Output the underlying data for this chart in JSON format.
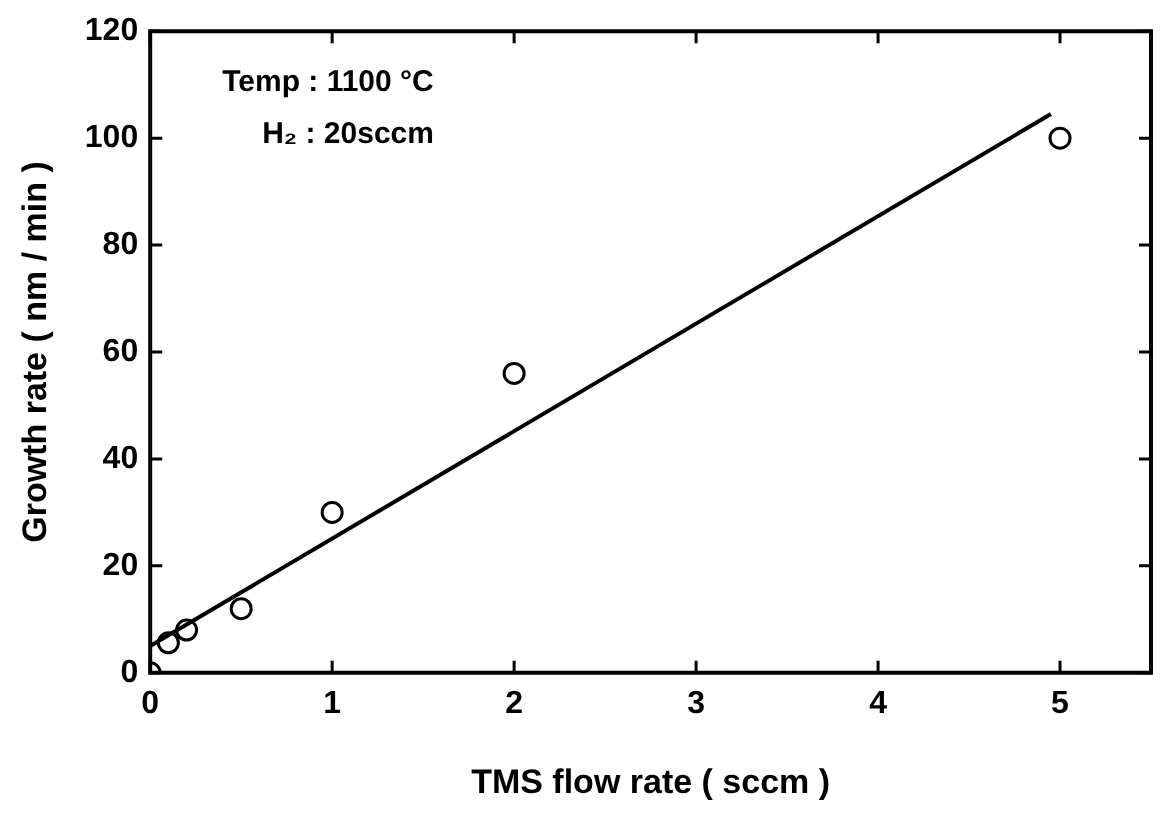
{
  "chart_data": {
    "type": "scatter",
    "xlabel": "TMS flow rate ( sccm )",
    "ylabel": "Growth rate ( nm / min )",
    "xlim": [
      0,
      5.5
    ],
    "xticks": [
      0,
      1,
      2,
      3,
      4,
      5
    ],
    "ylim": [
      0,
      120
    ],
    "yticks": [
      0,
      20,
      40,
      60,
      80,
      100,
      120
    ],
    "grid": false,
    "legend": false,
    "marker": "circle",
    "series": [
      {
        "color": "#000000",
        "x": [
          0,
          0.1,
          0.2,
          0.5,
          1,
          2,
          5
        ],
        "values": [
          0,
          5.6,
          8,
          12,
          30,
          56,
          100
        ]
      },
      {
        "type": "line",
        "color": "#000000",
        "marker": "none",
        "line_style": "solid",
        "x": [
          0,
          4.95
        ],
        "values": [
          5,
          104.5
        ]
      }
    ],
    "annotations": [
      "Temp : 1100 °C",
      "H₂ : 20sccm"
    ]
  }
}
